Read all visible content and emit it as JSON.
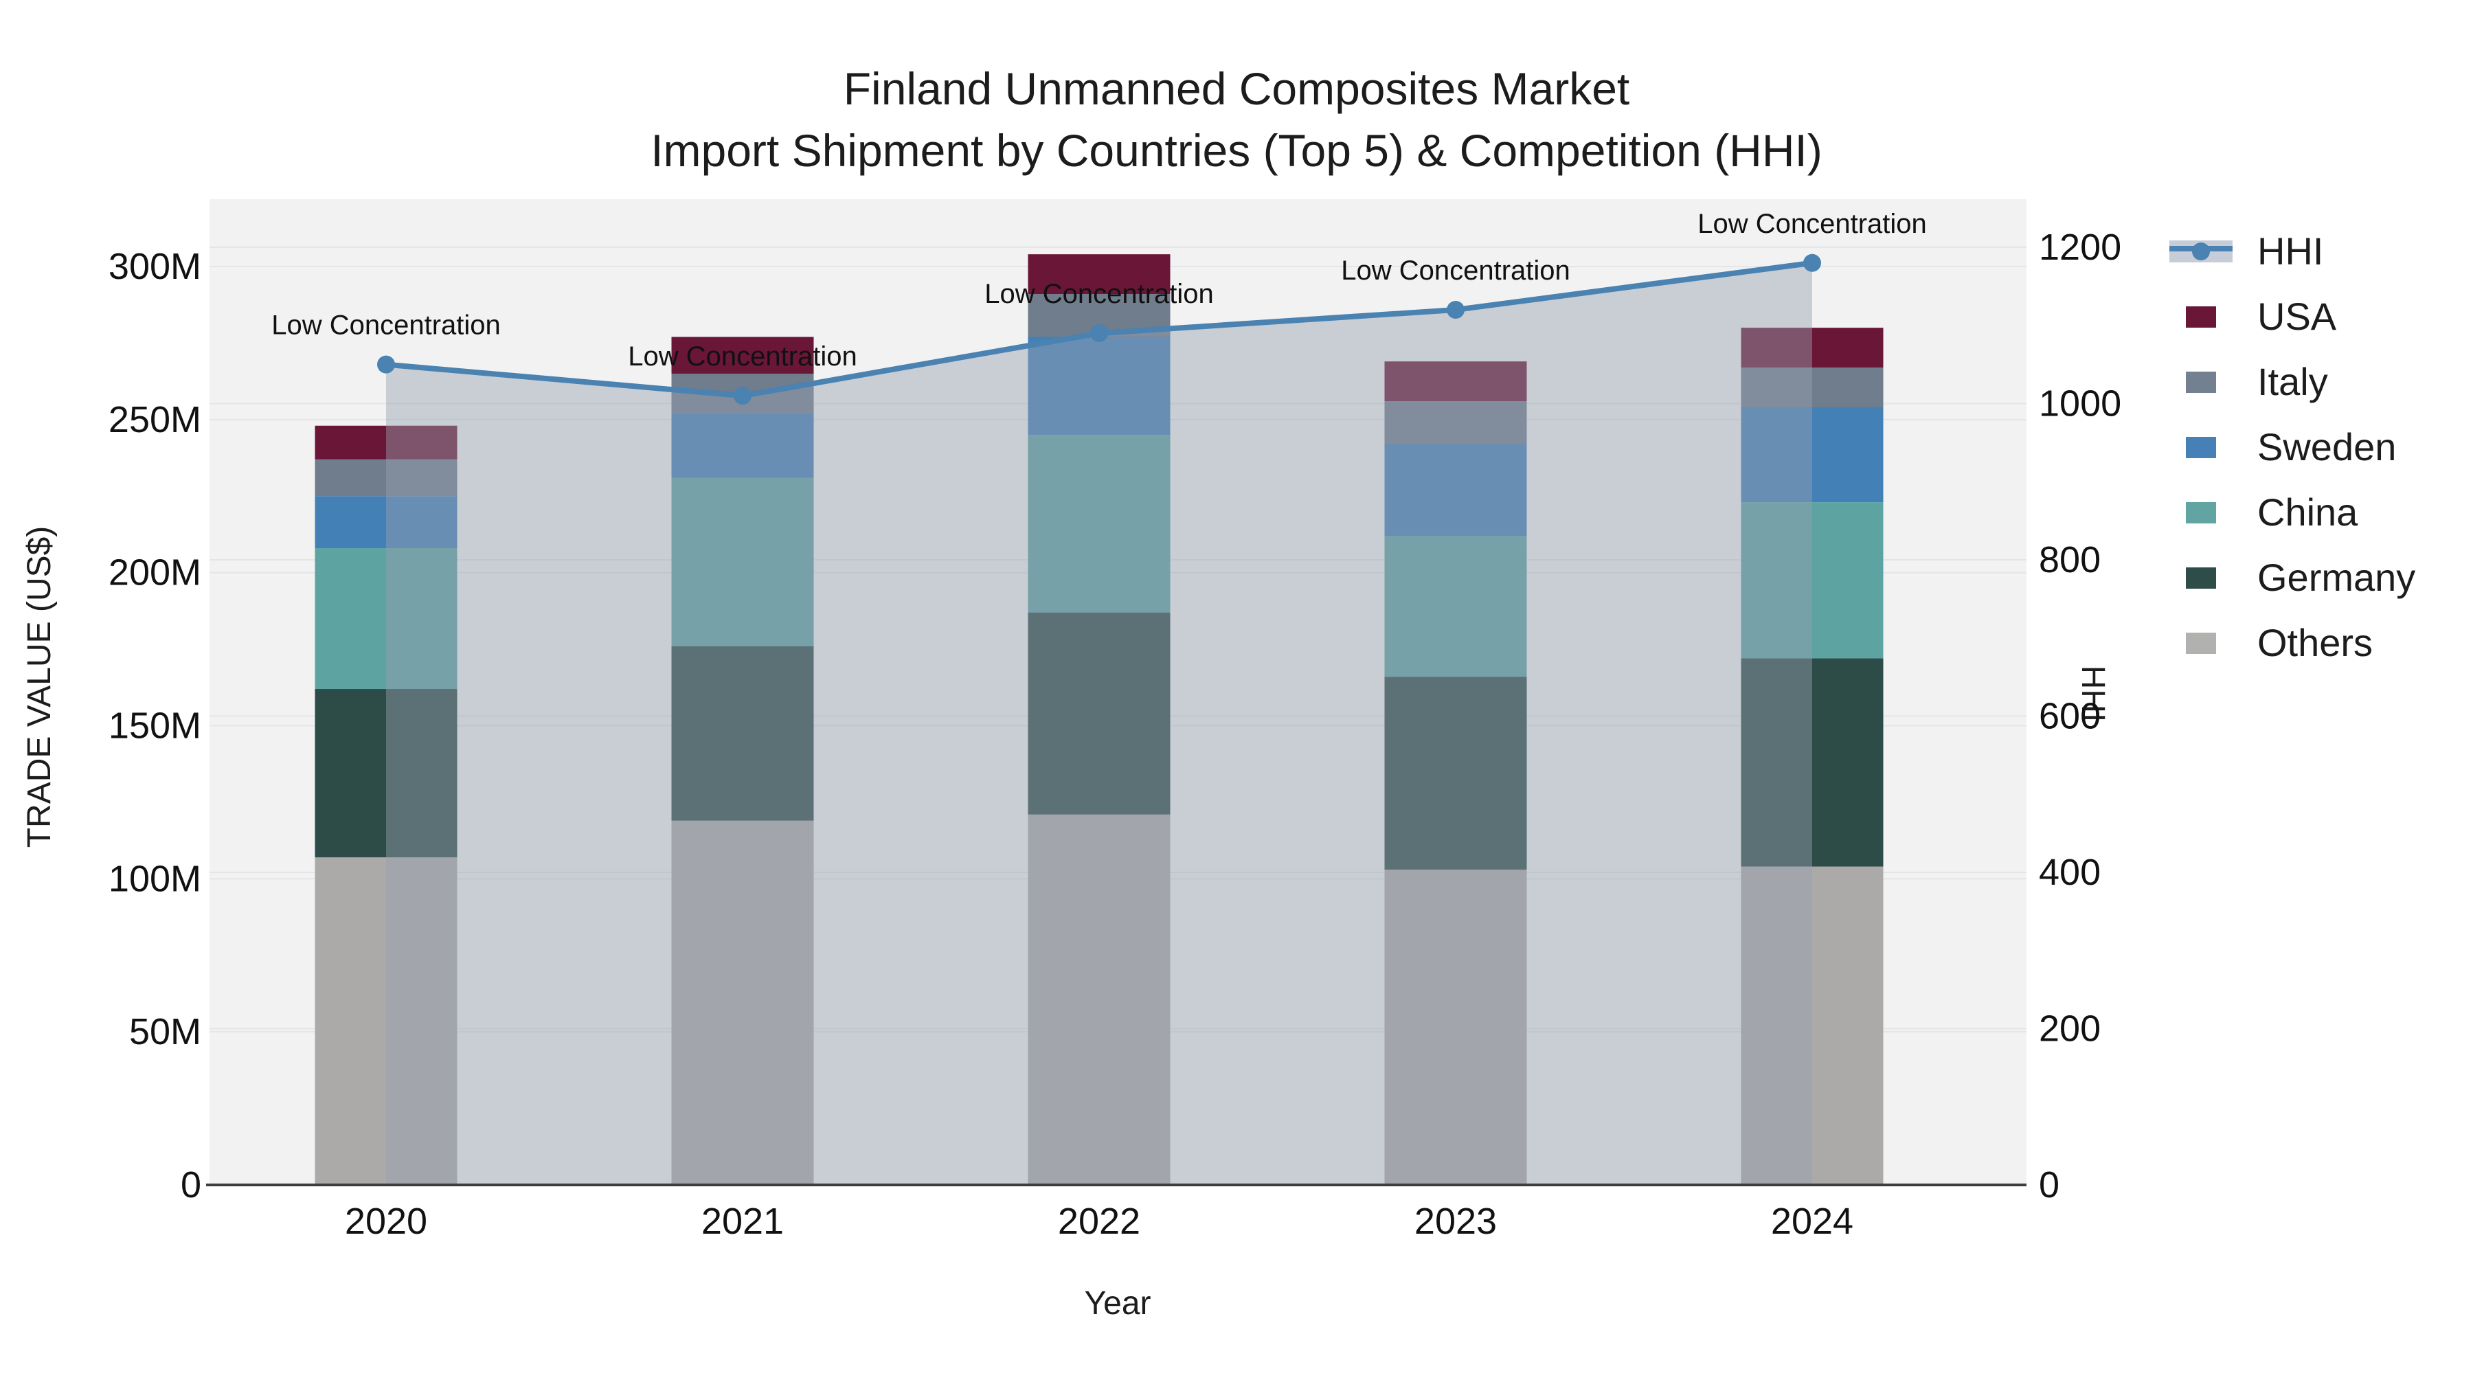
{
  "title": {
    "line1": "Finland Unmanned Composites Market",
    "line2": "Import Shipment by Countries (Top 5) & Competition (HHI)"
  },
  "chart_data": {
    "type": "bar+line",
    "subtype": "stacked bars with secondary-axis line and area fill",
    "categories": [
      "2020",
      "2021",
      "2022",
      "2023",
      "2024"
    ],
    "stack_order_note": "bottom to top",
    "series": [
      {
        "name": "Others",
        "type": "bar",
        "color": "#abaaa8",
        "values": [
          107,
          119,
          121,
          103,
          104
        ]
      },
      {
        "name": "Germany",
        "type": "bar",
        "color": "#2d4c48",
        "values": [
          55,
          57,
          66,
          63,
          68
        ]
      },
      {
        "name": "China",
        "type": "bar",
        "color": "#5ca3a2",
        "values": [
          46,
          55,
          58,
          46,
          51
        ]
      },
      {
        "name": "Sweden",
        "type": "bar",
        "color": "#4280b6",
        "values": [
          17,
          21,
          32,
          30,
          31
        ]
      },
      {
        "name": "Italy",
        "type": "bar",
        "color": "#6f7d8c",
        "values": [
          12,
          13,
          14,
          14,
          13
        ]
      },
      {
        "name": "USA",
        "type": "bar",
        "color": "#6a1637",
        "values": [
          11,
          12,
          13,
          13,
          13
        ]
      }
    ],
    "line_series": {
      "name": "HHI",
      "axis": "right",
      "color": "#4a82b1",
      "area_fill": "rgba(150,160,176,0.45)",
      "values": [
        1050,
        1010,
        1090,
        1120,
        1180
      ]
    },
    "annotations": [
      "Low Concentration",
      "Low Concentration",
      "Low Concentration",
      "Low Concentration",
      "Low Concentration"
    ],
    "y_left": {
      "label": "TRADE VALUE (US$)",
      "ticks": [
        0,
        50,
        100,
        150,
        200,
        250,
        300
      ],
      "tick_labels": [
        "0",
        "50M",
        "100M",
        "150M",
        "200M",
        "250M",
        "300M"
      ],
      "range": [
        0,
        300
      ]
    },
    "y_right": {
      "label": "HHI",
      "ticks": [
        0,
        200,
        400,
        600,
        800,
        1000,
        1200
      ],
      "tick_labels": [
        "0",
        "200",
        "400",
        "600",
        "800",
        "1000",
        "1200"
      ],
      "range": [
        0,
        1200
      ]
    },
    "x": {
      "label": "Year"
    },
    "grid": true,
    "legend_position": "right",
    "plot_bg": "#f2f2f3",
    "gridline_color": "#e3e5e8",
    "baseline_color": "#3d3d3d"
  },
  "legend": {
    "items": [
      {
        "label": "HHI",
        "type": "line",
        "line": "#4a82b1",
        "band": "#c6ccd8",
        "dot": "#4a82b1"
      },
      {
        "label": "USA",
        "type": "swatch",
        "color": "#6a1637"
      },
      {
        "label": "Italy",
        "type": "swatch",
        "color": "#72808f"
      },
      {
        "label": "Sweden",
        "type": "swatch",
        "color": "#4581b6"
      },
      {
        "label": "China",
        "type": "swatch",
        "color": "#61a4a2"
      },
      {
        "label": "Germany",
        "type": "swatch",
        "color": "#2e4c48"
      },
      {
        "label": "Others",
        "type": "swatch",
        "color": "#b1b1af"
      }
    ]
  }
}
